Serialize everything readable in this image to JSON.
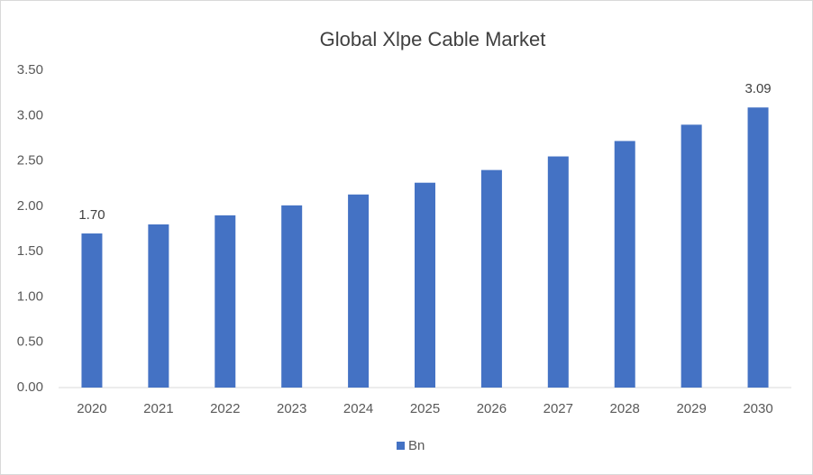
{
  "chart_data": {
    "type": "bar",
    "title": "Global Xlpe Cable Market",
    "categories": [
      "2020",
      "2021",
      "2022",
      "2023",
      "2024",
      "2025",
      "2026",
      "2027",
      "2028",
      "2029",
      "2030"
    ],
    "series": [
      {
        "name": "Bn",
        "color": "#4472c4",
        "values": [
          1.7,
          1.8,
          1.9,
          2.01,
          2.13,
          2.26,
          2.4,
          2.55,
          2.72,
          2.9,
          3.09
        ],
        "value_labels": [
          "1.70",
          null,
          null,
          null,
          null,
          null,
          null,
          null,
          null,
          null,
          "3.09"
        ]
      }
    ],
    "ylim": [
      0,
      3.5
    ],
    "yticks": [
      {
        "value": 0,
        "label": "0.00"
      },
      {
        "value": 0.5,
        "label": "0.50"
      },
      {
        "value": 1,
        "label": "1.00"
      },
      {
        "value": 1.5,
        "label": "1.50"
      },
      {
        "value": 2,
        "label": "2.00"
      },
      {
        "value": 2.5,
        "label": "2.50"
      },
      {
        "value": 3,
        "label": "3.00"
      },
      {
        "value": 3.5,
        "label": "3.50"
      }
    ],
    "grid": false,
    "legend": "bottom"
  }
}
